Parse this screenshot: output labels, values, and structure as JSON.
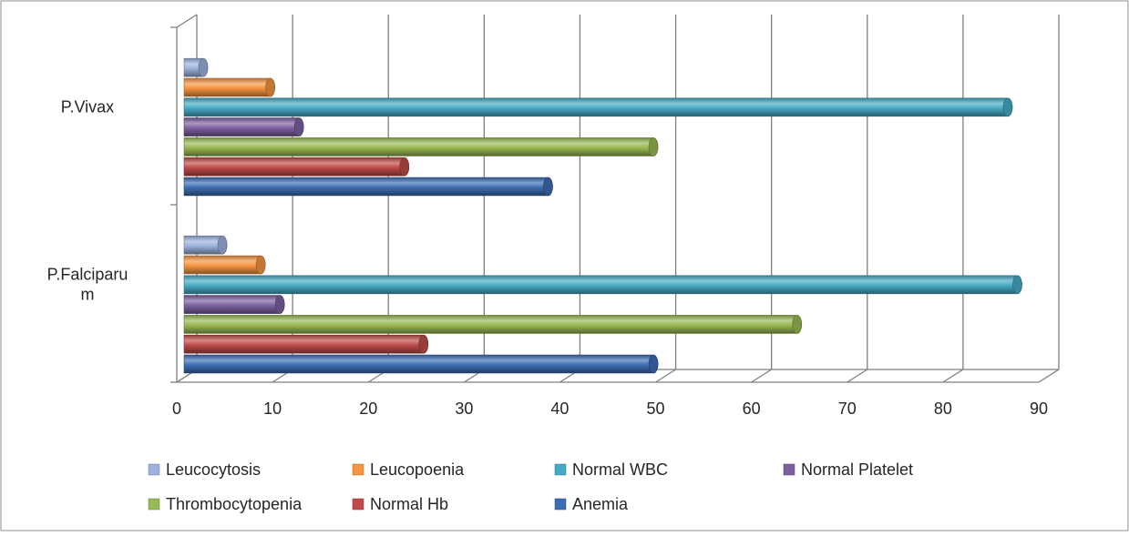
{
  "chart_data": {
    "type": "bar",
    "orientation": "horizontal",
    "style": "3d-cylinder",
    "categories": [
      "P.Falciparum",
      "P.Vivax"
    ],
    "category_label_lines": [
      [
        "P.Falciparu",
        "m"
      ],
      [
        "P.Vivax"
      ]
    ],
    "series": [
      {
        "name": "Anemia",
        "values": [
          49,
          38
        ],
        "color": "#3C6DB4"
      },
      {
        "name": "Normal Hb",
        "values": [
          25,
          23
        ],
        "color": "#BE4B48"
      },
      {
        "name": "Thrombocytopenia",
        "values": [
          64,
          49
        ],
        "color": "#98B954"
      },
      {
        "name": "Normal Platelet",
        "values": [
          10,
          12
        ],
        "color": "#7D60A0"
      },
      {
        "name": "Normal WBC",
        "values": [
          87,
          86
        ],
        "color": "#46AAC5"
      },
      {
        "name": "Leucopoenia",
        "values": [
          8,
          9
        ],
        "color": "#F59540"
      },
      {
        "name": "Leucocytosis",
        "values": [
          4,
          2
        ],
        "color": "#9CB2DF"
      }
    ],
    "legend_order": [
      "Leucocytosis",
      "Leucopoenia",
      "Normal WBC",
      "Normal Platelet",
      "Thrombocytopenia",
      "Normal Hb",
      "Anemia"
    ],
    "xlim": [
      0,
      90
    ],
    "x_ticks": [
      "0",
      "10",
      "20",
      "30",
      "40",
      "50",
      "60",
      "70",
      "80",
      "90"
    ],
    "grid": "vertical",
    "legend_position": "bottom"
  }
}
